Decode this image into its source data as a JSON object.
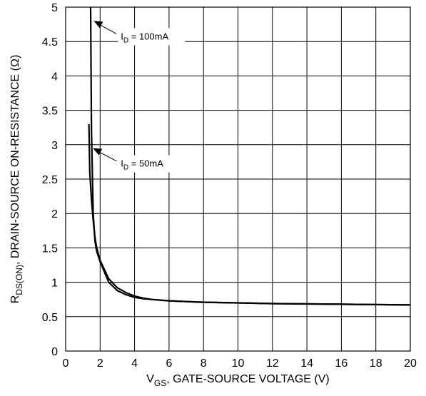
{
  "chart_data": {
    "type": "line",
    "title": "",
    "xlabel": {
      "main": "V",
      "sub": "GS",
      "rest": ", GATE-SOURCE VOLTAGE (V)"
    },
    "ylabel": {
      "main": "R",
      "sub": "DS(ON)",
      "rest": ", DRAIN-SOURCE ON-RESISTANCE (Ω)"
    },
    "xlim": [
      0,
      20
    ],
    "ylim": [
      0,
      5
    ],
    "x_ticks": [
      0,
      2,
      4,
      6,
      8,
      10,
      12,
      14,
      16,
      18,
      20
    ],
    "x_tick_labels": [
      "0",
      "2",
      "4",
      "6",
      "8",
      "10",
      "12",
      "14",
      "16",
      "18",
      "20"
    ],
    "y_ticks": [
      0,
      0.5,
      1,
      1.5,
      2,
      2.5,
      3,
      3.5,
      4,
      4.5,
      5
    ],
    "y_tick_labels": [
      "0",
      "0.5",
      "1",
      "1.5",
      "2",
      "2.5",
      "3",
      "3.5",
      "4",
      "4.5",
      "5"
    ],
    "grid": true,
    "series": [
      {
        "id": "id-100ma",
        "x": [
          1.45,
          1.5,
          1.6,
          1.7,
          1.8,
          2.0,
          2.5,
          3.0,
          3.5,
          4.0,
          4.5,
          5,
          6,
          8,
          10,
          12,
          16,
          20
        ],
        "y": [
          5.0,
          3.2,
          2.0,
          1.6,
          1.45,
          1.3,
          1.0,
          0.88,
          0.82,
          0.78,
          0.76,
          0.75,
          0.73,
          0.71,
          0.7,
          0.69,
          0.68,
          0.67
        ]
      },
      {
        "id": "id-50ma",
        "x": [
          1.35,
          1.4,
          1.5,
          1.6,
          1.7,
          1.8,
          2.0,
          2.5,
          3.0,
          3.5,
          4.0,
          4.5,
          5,
          6,
          8,
          10,
          12,
          16,
          20
        ],
        "y": [
          3.3,
          2.6,
          2.2,
          1.9,
          1.65,
          1.5,
          1.32,
          1.05,
          0.92,
          0.85,
          0.8,
          0.77,
          0.75,
          0.73,
          0.71,
          0.7,
          0.69,
          0.68,
          0.67
        ]
      }
    ],
    "annotations": [
      {
        "id": "ann-100",
        "label_main": "I",
        "label_sub": "D",
        "label_rest": " = 100mA",
        "points_to": [
          1.55,
          4.8
        ],
        "text_at": [
          3.2,
          4.55
        ]
      },
      {
        "id": "ann-50",
        "label_main": "I",
        "label_sub": "D",
        "label_rest": " = 50mA",
        "points_to": [
          1.5,
          2.95
        ],
        "text_at": [
          3.2,
          2.7
        ]
      }
    ]
  }
}
